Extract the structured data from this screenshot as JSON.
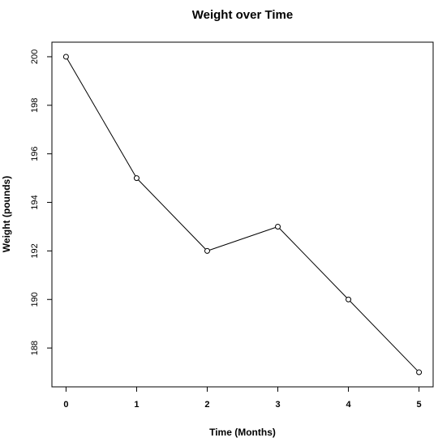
{
  "chart_data": {
    "type": "line",
    "title": "Weight over Time",
    "xlabel": "Time (Months)",
    "ylabel": "Weight (pounds)",
    "x": [
      0,
      1,
      2,
      3,
      4,
      5
    ],
    "y": [
      200,
      195,
      192,
      193,
      190,
      187
    ],
    "xlim": [
      -0.2,
      5.2
    ],
    "ylim": [
      186.4,
      200.6
    ],
    "xticks": [
      0,
      1,
      2,
      3,
      4,
      5
    ],
    "yticks": [
      188,
      190,
      192,
      194,
      196,
      198,
      200
    ],
    "grid": false,
    "legend": "none",
    "marker": "open-circle",
    "colors": {
      "line": "#000000",
      "axis": "#000000",
      "background": "#ffffff"
    }
  }
}
